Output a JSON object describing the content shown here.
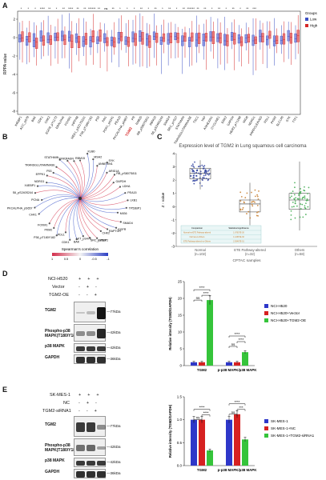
{
  "panels": {
    "a": "A",
    "b": "B",
    "c": "C",
    "d": "D",
    "e": "E"
  },
  "panel_a": {
    "ylabel": "RPPA value",
    "legend_title": "Groups",
    "legend_items": [
      {
        "label": "Low",
        "color": "#3b4fc4"
      },
      {
        "label": "High",
        "color": "#d62828"
      }
    ],
    "yticks": [
      "2",
      "0",
      "-2",
      "-4",
      "-6",
      "-8"
    ],
    "categories": [
      "X4EBP1",
      "ACC_pS79",
      "BAK",
      "CDK1",
      "CHK2",
      "EGFR_pY1173",
      "ERALPHA",
      "FOXM1",
      "INPP4B",
      "MEK1_pS217S221",
      "P38_pT180Y182",
      "P53",
      "PAI1",
      "PDK1_pS241",
      "PEA15",
      "PKCALPHA_pS657",
      "PR",
      "RAB25",
      "RB_pS807S811",
      "RBM15",
      "S6_pS240S244",
      "SMAD4",
      "SRC_pY527",
      "STATHMIN",
      "TRANSGLUTAMINASE",
      "TSC1",
      "YAP",
      "ANNEXIN1",
      "CYCLINE1",
      "ERK2",
      "GAPDH",
      "HER3_pY1298",
      "MIG6",
      "NDRG1",
      "PARPCLEAVED",
      "PDL1",
      "PKM2",
      "SLC1A5",
      "SYK",
      "TTF1"
    ],
    "highlighted": "TGM2",
    "sig_marks": "* * * **** ** * ** **** ** ** ****** ** ns ** * * * ** * ** * ** * ** ****** ** ** * ** * ** * ** ***"
  },
  "panel_b": {
    "nodes": [
      "RBM15",
      "KU80",
      "MSH2",
      "ANNEXIN1",
      "SYK",
      "ARID1A",
      "RB_pS807S811",
      "GAPDH",
      "LDHA",
      "PEA15",
      "LKB1",
      "TP53BP1",
      "MIG6",
      "SMAD4",
      "EGFR",
      "RAPTOR",
      "CHK2",
      "IGFBP2",
      "SRC_pY527",
      "AKT_pS473",
      "BAK",
      "CDK1",
      "PDL1",
      "P38_pT180Y182",
      "PKM2",
      "FOXM1",
      "TGM2",
      "CHK1",
      "PKCALPHA_pS657",
      "PCNA",
      "S6_pS240S244",
      "X4EBP1",
      "NDRG1",
      "EPPK1",
      "P53",
      "TRANSGLUTAMINASE",
      "STATHMIN",
      "ERK2",
      "FASN"
    ],
    "center": "TGM2",
    "colorbar_title": "Spearman's correlation",
    "colorbar_ticks": [
      "1",
      "0.5",
      "0",
      "-0.5",
      "-1"
    ]
  },
  "panel_c": {
    "title": "Expression level of TGM2 in Lung squamous cell carcinoma",
    "xlabel": "CPTAC samples",
    "ylabel": "Z - value",
    "yticks": [
      "4",
      "3",
      "2",
      "1",
      "0",
      "-1",
      "-2",
      "-3"
    ],
    "groups": [
      {
        "label": "Normal",
        "n": "(n=102)",
        "color": "#2d3f9e"
      },
      {
        "label": "ETE Pathway-altered",
        "n": "(n=32)",
        "color": "#c77d2b"
      },
      {
        "label": "Others",
        "n": "(n=58)",
        "color": "#3aa84a"
      }
    ],
    "table_header": [
      "Comparison",
      "Statistical significance"
    ],
    "table_rows": [
      [
        "Normal-vs-ETE Pathway-altered",
        "1.67607E-30"
      ],
      [
        "Normal-vs-Others",
        "1.12667E-30"
      ],
      [
        "ETE Pathway-altered-vs-Others",
        "2.05467E-01"
      ]
    ]
  },
  "panel_d": {
    "cell_line": "NCI-H520",
    "rows": [
      "Vector",
      "TGM2-OE"
    ],
    "markers": [
      {
        "label": "TGM2",
        "kda": "—77kDa"
      },
      {
        "label": "Phospho-p38 MAPK(T180/Y182)",
        "kda": "—42kDa"
      },
      {
        "label": "p38 MAPK",
        "kda": "—42kDa"
      },
      {
        "label": "GAPDH",
        "kda": "—36kDa"
      }
    ],
    "chart_data": {
      "type": "bar",
      "categories": [
        "TGM2",
        "p-p38 MAPK/p38 MAPK"
      ],
      "series": [
        {
          "name": "NCI-H520",
          "values": [
            1.0,
            1.0
          ],
          "color": "#2e37c9"
        },
        {
          "name": "NCI-H520+Vector",
          "values": [
            1.0,
            1.0
          ],
          "color": "#d62121"
        },
        {
          "name": "NCI-H520+TGM2-OE",
          "values": [
            19.5,
            4.0
          ],
          "color": "#35c43a"
        }
      ],
      "ylabel": "Relative intensity (TGM2/GAPDH)",
      "ylim": [
        0,
        25
      ],
      "yticks": [
        "0",
        "5",
        "10",
        "15",
        "20",
        "25"
      ],
      "significance": [
        "ns",
        "****",
        "****",
        "ns",
        "****",
        "****"
      ]
    }
  },
  "panel_e": {
    "cell_line": "SK-MES-1",
    "rows": [
      "NC",
      "TGM2-siRNA1"
    ],
    "markers": [
      {
        "label": "TGM2",
        "kda": "—77kDa"
      },
      {
        "label": "Phospho-p38 MAPK(T180/Y182)",
        "kda": "—42kDa"
      },
      {
        "label": "p38 MAPK",
        "kda": "—42kDa"
      },
      {
        "label": "GAPDH",
        "kda": "—36kDa"
      }
    ],
    "chart_data": {
      "type": "bar",
      "categories": [
        "TGM2",
        "p-p38 MAPK/p38 MAPK"
      ],
      "series": [
        {
          "name": "SK-MES-1",
          "values": [
            1.0,
            1.0
          ],
          "color": "#2e37c9"
        },
        {
          "name": "SK-MES-1+NC",
          "values": [
            1.0,
            1.12
          ],
          "color": "#d62121"
        },
        {
          "name": "SK-MES-1+TGM2-siRNA1",
          "values": [
            0.33,
            0.57
          ],
          "color": "#35c43a"
        }
      ],
      "ylabel": "Relative intensity (TGM2/GAPDH)",
      "ylim": [
        0,
        1.5
      ],
      "yticks": [
        "0.0",
        "0.5",
        "1.0",
        "1.5"
      ],
      "significance": [
        "ns",
        "****",
        "****",
        "ns",
        "***",
        "****"
      ]
    }
  }
}
